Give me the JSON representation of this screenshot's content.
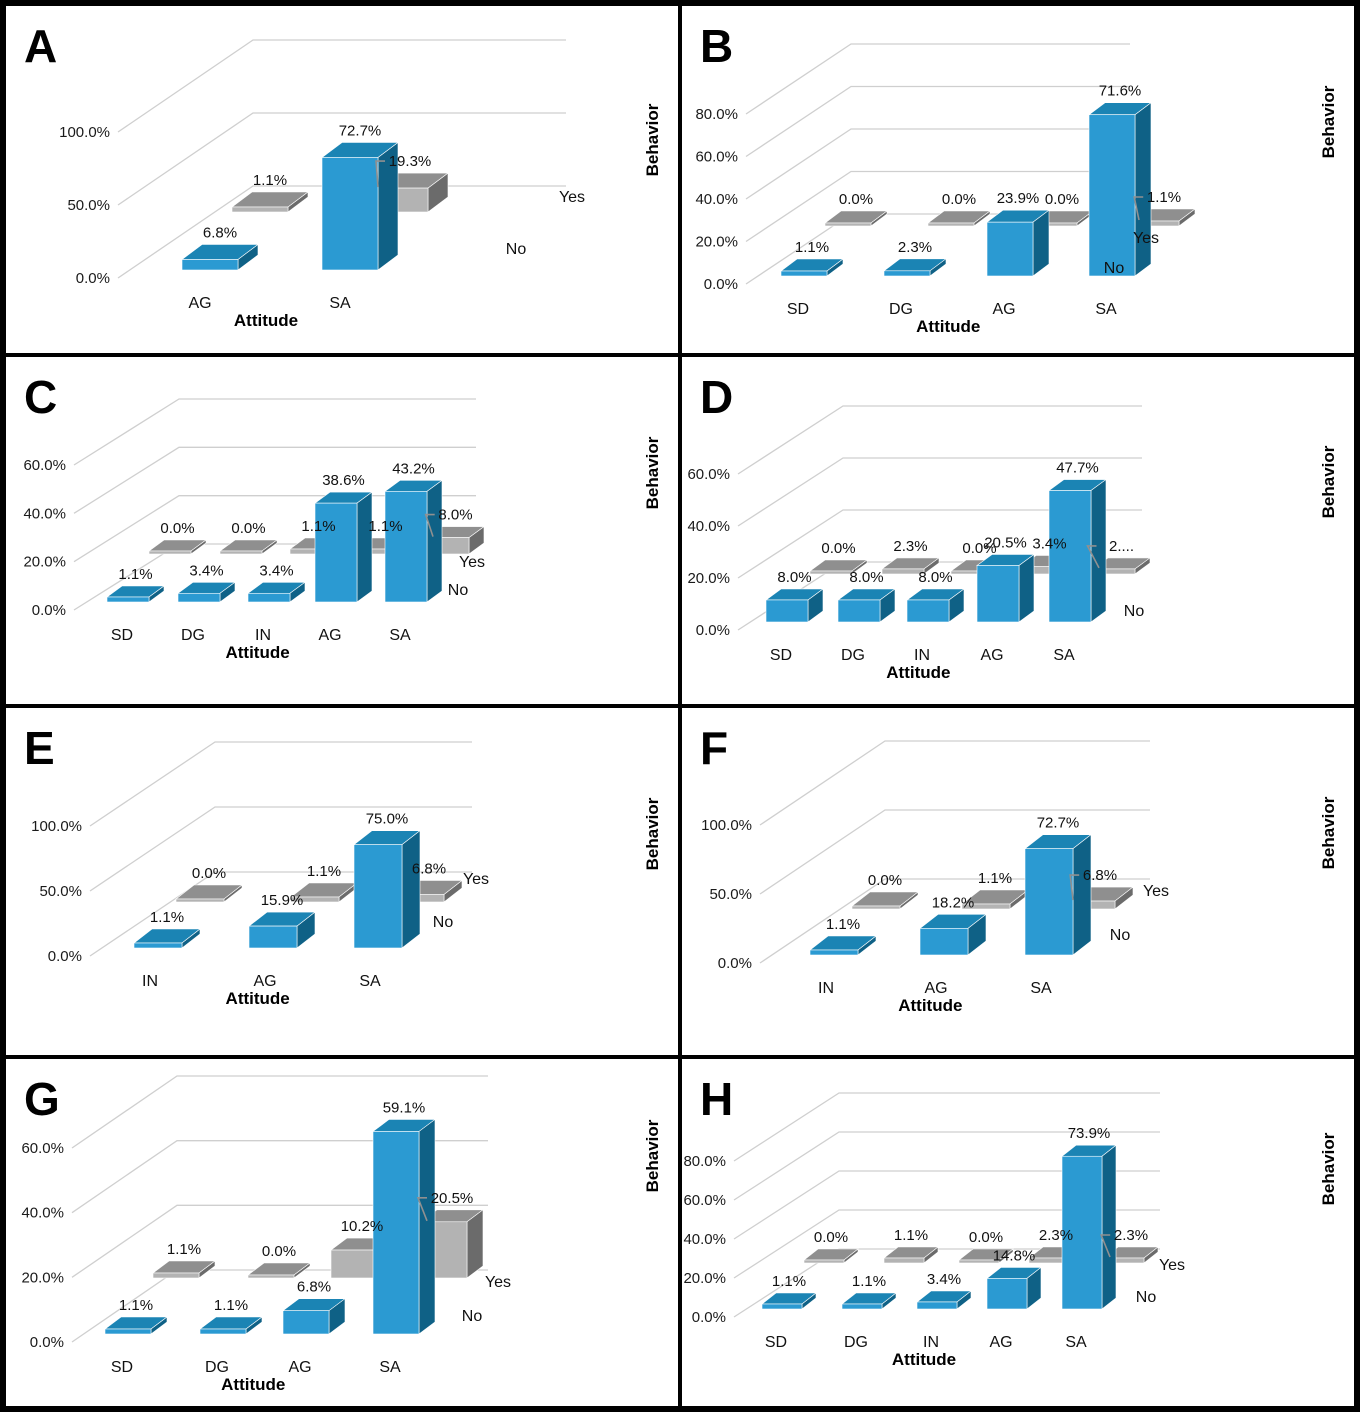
{
  "colors": {
    "no_front": "#2B9AD2",
    "no_top": "#1B84B4",
    "no_side": "#0F6186",
    "yes_front": "#B3B3B3",
    "yes_top": "#8F8F8F",
    "yes_side": "#6B6B6B",
    "grid": "#CFCFCF",
    "leader": "#909090",
    "text": "#000000",
    "border": "#000000",
    "background": "#FFFFFF"
  },
  "chart_data": [
    {
      "panel_label": "A",
      "type": "bar",
      "projection": "3d",
      "categories": [
        "AG",
        "SA"
      ],
      "series": [
        {
          "name": "No",
          "values": [
            6.8,
            72.7
          ],
          "labels": [
            "6.8%",
            "72.7%"
          ]
        },
        {
          "name": "Yes",
          "values": [
            1.1,
            19.3
          ],
          "labels": [
            "1.1%",
            "19.3%"
          ],
          "leader": [
            false,
            true
          ]
        }
      ],
      "y_ticks": [
        "0.0%",
        "50.0%",
        "100.0%"
      ],
      "ylim": [
        0,
        100
      ],
      "xlabel": "Attitude",
      "depth_axis_label": "Behavior",
      "depth_labels": [
        "Yes",
        "No"
      ],
      "grid": true,
      "legend": "none"
    },
    {
      "panel_label": "B",
      "type": "bar",
      "projection": "3d",
      "categories": [
        "SD",
        "DG",
        "AG",
        "SA"
      ],
      "series": [
        {
          "name": "No",
          "values": [
            1.1,
            2.3,
            23.9,
            71.6
          ],
          "labels": [
            "1.1%",
            "2.3%",
            "23.9%",
            "71.6%"
          ]
        },
        {
          "name": "Yes",
          "values": [
            0.0,
            0.0,
            0.0,
            1.1
          ],
          "labels": [
            "0.0%",
            "0.0%",
            "0.0%",
            "1.1%"
          ],
          "leader": [
            false,
            false,
            false,
            true
          ]
        }
      ],
      "y_ticks": [
        "0.0%",
        "20.0%",
        "40.0%",
        "60.0%",
        "80.0%"
      ],
      "ylim": [
        0,
        80
      ],
      "xlabel": "Attitude",
      "depth_axis_label": "Behavior",
      "depth_labels": [
        "Yes",
        "No"
      ],
      "grid": true,
      "legend": "none"
    },
    {
      "panel_label": "C",
      "type": "bar",
      "projection": "3d",
      "categories": [
        "SD",
        "DG",
        "IN",
        "AG",
        "SA"
      ],
      "series": [
        {
          "name": "No",
          "values": [
            1.1,
            3.4,
            3.4,
            38.6,
            43.2
          ],
          "labels": [
            "1.1%",
            "3.4%",
            "3.4%",
            "38.6%",
            "43.2%"
          ]
        },
        {
          "name": "Yes",
          "values": [
            0.0,
            0.0,
            1.1,
            1.1,
            8.0
          ],
          "labels": [
            "0.0%",
            "0.0%",
            "1.1%",
            "1.1%",
            "8.0%"
          ],
          "leader": [
            false,
            false,
            false,
            false,
            true
          ]
        }
      ],
      "y_ticks": [
        "0.0%",
        "20.0%",
        "40.0%",
        "60.0%"
      ],
      "ylim": [
        0,
        60
      ],
      "xlabel": "Attitude",
      "depth_axis_label": "Behavior",
      "depth_labels": [
        "Yes",
        "No"
      ],
      "grid": true,
      "legend": "none"
    },
    {
      "panel_label": "D",
      "type": "bar",
      "projection": "3d",
      "categories": [
        "SD",
        "DG",
        "IN",
        "AG",
        "SA"
      ],
      "series": [
        {
          "name": "No",
          "values": [
            8.0,
            8.0,
            8.0,
            20.5,
            47.7
          ],
          "labels": [
            "8.0%",
            "8.0%",
            "8.0%",
            "20.5%",
            "47.7%"
          ]
        },
        {
          "name": "Yes",
          "values": [
            0.0,
            2.3,
            0.0,
            3.4,
            2.3
          ],
          "labels": [
            "0.0%",
            "2.3%",
            "0.0%",
            "3.4%",
            "2...."
          ],
          "leader": [
            false,
            false,
            false,
            false,
            true
          ]
        }
      ],
      "y_ticks": [
        "0.0%",
        "20.0%",
        "40.0%",
        "60.0%"
      ],
      "ylim": [
        0,
        60
      ],
      "xlabel": "Attitude",
      "depth_axis_label": "Behavior",
      "depth_labels": [
        "No"
      ],
      "grid": true,
      "legend": "none"
    },
    {
      "panel_label": "E",
      "type": "bar",
      "projection": "3d",
      "categories": [
        "IN",
        "AG",
        "SA"
      ],
      "series": [
        {
          "name": "No",
          "values": [
            1.1,
            15.9,
            75.0
          ],
          "labels": [
            "1.1%",
            "15.9%",
            "75.0%"
          ]
        },
        {
          "name": "Yes",
          "values": [
            0.0,
            1.1,
            6.8
          ],
          "labels": [
            "0.0%",
            "1.1%",
            "6.8%"
          ],
          "leader": [
            false,
            false,
            false
          ]
        }
      ],
      "y_ticks": [
        "0.0%",
        "50.0%",
        "100.0%"
      ],
      "ylim": [
        0,
        100
      ],
      "xlabel": "Attitude",
      "depth_axis_label": "Behavior",
      "depth_labels": [
        "Yes",
        "No"
      ],
      "grid": true,
      "legend": "none"
    },
    {
      "panel_label": "F",
      "type": "bar",
      "projection": "3d",
      "categories": [
        "IN",
        "AG",
        "SA"
      ],
      "series": [
        {
          "name": "No",
          "values": [
            1.1,
            18.2,
            72.7
          ],
          "labels": [
            "1.1%",
            "18.2%",
            "72.7%"
          ]
        },
        {
          "name": "Yes",
          "values": [
            0.0,
            1.1,
            6.8
          ],
          "labels": [
            "0.0%",
            "1.1%",
            "6.8%"
          ],
          "leader": [
            false,
            false,
            true
          ]
        }
      ],
      "y_ticks": [
        "0.0%",
        "50.0%",
        "100.0%"
      ],
      "ylim": [
        0,
        100
      ],
      "xlabel": "Attitude",
      "depth_axis_label": "Behavior",
      "depth_labels": [
        "Yes",
        "No"
      ],
      "grid": true,
      "legend": "none"
    },
    {
      "panel_label": "G",
      "type": "bar",
      "projection": "3d",
      "categories": [
        "SD",
        "DG",
        "AG",
        "SA"
      ],
      "series": [
        {
          "name": "No",
          "values": [
            1.1,
            1.1,
            6.8,
            59.1
          ],
          "labels": [
            "1.1%",
            "1.1%",
            "6.8%",
            "59.1%"
          ]
        },
        {
          "name": "Yes",
          "values": [
            1.1,
            0.0,
            10.2,
            20.5
          ],
          "labels": [
            "1.1%",
            "0.0%",
            "10.2%",
            "20.5%"
          ],
          "leader": [
            false,
            false,
            false,
            true
          ]
        }
      ],
      "y_ticks": [
        "0.0%",
        "20.0%",
        "40.0%",
        "60.0%"
      ],
      "ylim": [
        0,
        60
      ],
      "xlabel": "Attitude",
      "depth_axis_label": "Behavior",
      "depth_labels": [
        "Yes",
        "No"
      ],
      "grid": true,
      "legend": "none"
    },
    {
      "panel_label": "H",
      "type": "bar",
      "projection": "3d",
      "categories": [
        "SD",
        "DG",
        "IN",
        "AG",
        "SA"
      ],
      "series": [
        {
          "name": "No",
          "values": [
            1.1,
            1.1,
            3.4,
            14.8,
            73.9
          ],
          "labels": [
            "1.1%",
            "1.1%",
            "3.4%",
            "14.8%",
            "73.9%"
          ]
        },
        {
          "name": "Yes",
          "values": [
            0.0,
            1.1,
            0.0,
            2.3,
            2.3
          ],
          "labels": [
            "0.0%",
            "1.1%",
            "0.0%",
            "2.3%",
            "2.3%"
          ],
          "leader": [
            false,
            false,
            false,
            false,
            true
          ]
        }
      ],
      "y_ticks": [
        "0.0%",
        "20.0%",
        "40.0%",
        "60.0%",
        "80.0%"
      ],
      "ylim": [
        0,
        80
      ],
      "xlabel": "Attitude",
      "depth_axis_label": "Behavior",
      "depth_labels": [
        "Yes",
        "No"
      ],
      "grid": true,
      "legend": "none"
    }
  ]
}
